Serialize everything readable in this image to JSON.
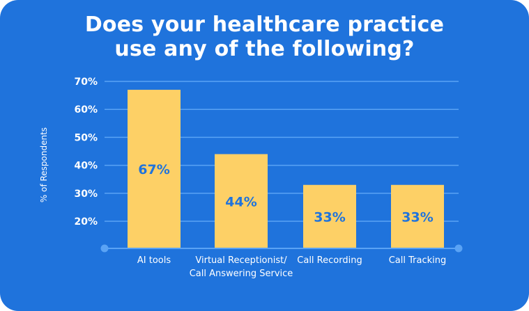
{
  "chart_data": {
    "type": "bar",
    "title": "Does your healthcare practice use any of the following?",
    "title_lines": [
      "Does your healthcare practice",
      "use any of the following?"
    ],
    "categories": [
      "AI tools",
      "Virtual Receptionist/ Call Answering Service",
      "Call Recording",
      "Call Tracking"
    ],
    "category_lines": [
      [
        "AI tools"
      ],
      [
        "Virtual Receptionist/",
        "Call Answering Service"
      ],
      [
        "Call Recording"
      ],
      [
        "Call Tracking"
      ]
    ],
    "values": [
      67,
      44,
      33,
      33
    ],
    "data_labels": [
      "67%",
      "44%",
      "33%",
      "33%"
    ],
    "ylabel": "% of Respondents",
    "xlabel": "",
    "yticks": [
      20,
      30,
      40,
      50,
      60,
      70
    ],
    "ytick_labels": [
      "20%",
      "30%",
      "40%",
      "50%",
      "60%",
      "70%"
    ],
    "ylim": [
      10,
      70
    ],
    "grid": true,
    "legend": "none",
    "colors": {
      "background": "#1f73dc",
      "bar": "#fdd066",
      "gridline": "#5aa3f5",
      "data_label": "#1f73dc",
      "text": "#ffffff"
    }
  }
}
